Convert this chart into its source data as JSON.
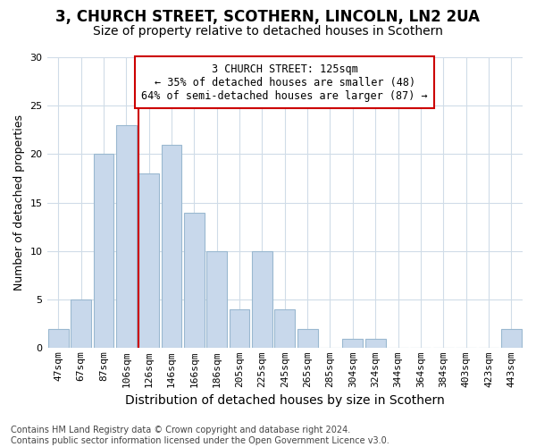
{
  "title1": "3, CHURCH STREET, SCOTHERN, LINCOLN, LN2 2UA",
  "title2": "Size of property relative to detached houses in Scothern",
  "xlabel": "Distribution of detached houses by size in Scothern",
  "ylabel": "Number of detached properties",
  "categories": [
    "47sqm",
    "67sqm",
    "87sqm",
    "106sqm",
    "126sqm",
    "146sqm",
    "166sqm",
    "186sqm",
    "205sqm",
    "225sqm",
    "245sqm",
    "265sqm",
    "285sqm",
    "304sqm",
    "324sqm",
    "344sqm",
    "364sqm",
    "384sqm",
    "403sqm",
    "423sqm",
    "443sqm"
  ],
  "values": [
    2,
    5,
    20,
    23,
    18,
    21,
    14,
    10,
    4,
    10,
    4,
    2,
    0,
    1,
    1,
    0,
    0,
    0,
    0,
    0,
    2
  ],
  "bar_color": "#c8d8eb",
  "bar_edgecolor": "#9ab8d0",
  "grid_color": "#d0dce8",
  "vline_x_index": 4,
  "vline_color": "#cc0000",
  "annotation_text": "3 CHURCH STREET: 125sqm\n← 35% of detached houses are smaller (48)\n64% of semi-detached houses are larger (87) →",
  "annotation_box_color": "#ffffff",
  "annotation_box_edgecolor": "#cc0000",
  "ylim": [
    0,
    30
  ],
  "yticks": [
    0,
    5,
    10,
    15,
    20,
    25,
    30
  ],
  "footer": "Contains HM Land Registry data © Crown copyright and database right 2024.\nContains public sector information licensed under the Open Government Licence v3.0.",
  "background_color": "#ffffff",
  "title1_fontsize": 12,
  "title2_fontsize": 10,
  "ylabel_fontsize": 9,
  "xlabel_fontsize": 10,
  "tick_fontsize": 8,
  "footer_fontsize": 7
}
